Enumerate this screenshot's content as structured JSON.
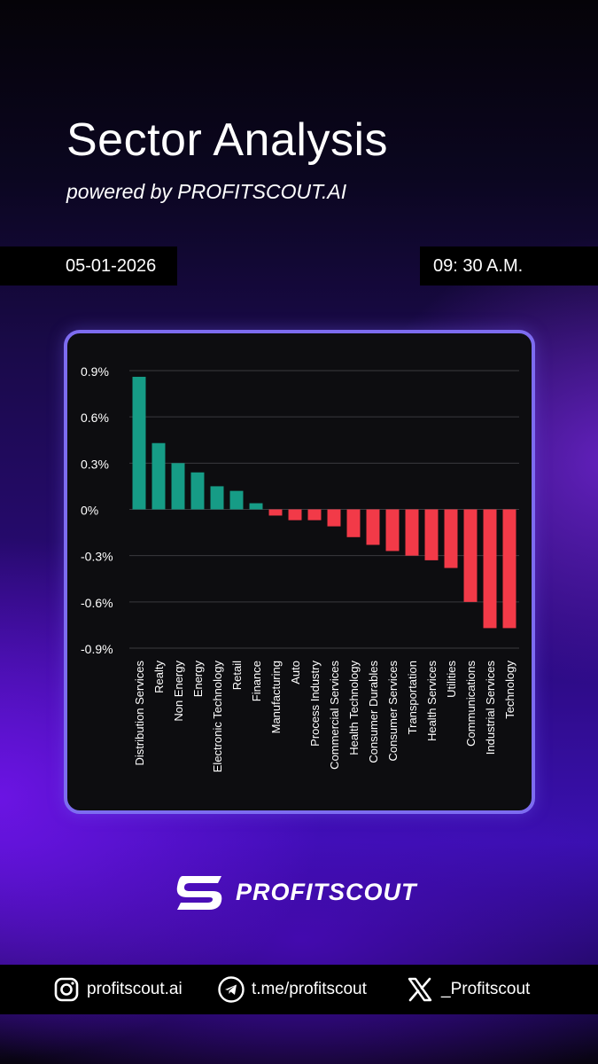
{
  "header": {
    "title": "Sector Analysis",
    "subtitle": "powered by PROFITSCOUT.AI",
    "date": "05-01-2026",
    "time": "09: 30 A.M."
  },
  "chart_data": {
    "type": "bar",
    "categories": [
      "Distribution Services",
      "Realty",
      "Non Energy",
      "Energy",
      "Electronic Technology",
      "Retail",
      "Finance",
      "Manufacturing",
      "Auto",
      "Process Industry",
      "Commercial Services",
      "Health Technology",
      "Consumer Durables",
      "Consumer Services",
      "Transportation",
      "Health Services",
      "Utilities",
      "Communications",
      "Industrial Services",
      "Technology"
    ],
    "values": [
      0.86,
      0.43,
      0.3,
      0.24,
      0.15,
      0.12,
      0.04,
      -0.04,
      -0.07,
      -0.07,
      -0.11,
      -0.18,
      -0.23,
      -0.27,
      -0.3,
      -0.33,
      -0.38,
      -0.6,
      -0.77,
      -0.77
    ],
    "y_ticks": [
      "0.9%",
      "0.6%",
      "0.3%",
      "0%",
      "-0.3%",
      "-0.6%",
      "-0.9%"
    ],
    "y_tick_values": [
      0.9,
      0.6,
      0.3,
      0,
      -0.3,
      -0.6,
      -0.9
    ],
    "ylim": [
      -0.9,
      0.9
    ],
    "grid": true,
    "colors": {
      "positive": "#169c86",
      "negative": "#f23a48",
      "grid": "#3a3a3e",
      "background": "#0d0d10"
    }
  },
  "brand": {
    "name": "PROFITSCOUT"
  },
  "footer": {
    "instagram": "profitscout.ai",
    "telegram": "t.me/profitscout",
    "x": "_Profitscout"
  }
}
